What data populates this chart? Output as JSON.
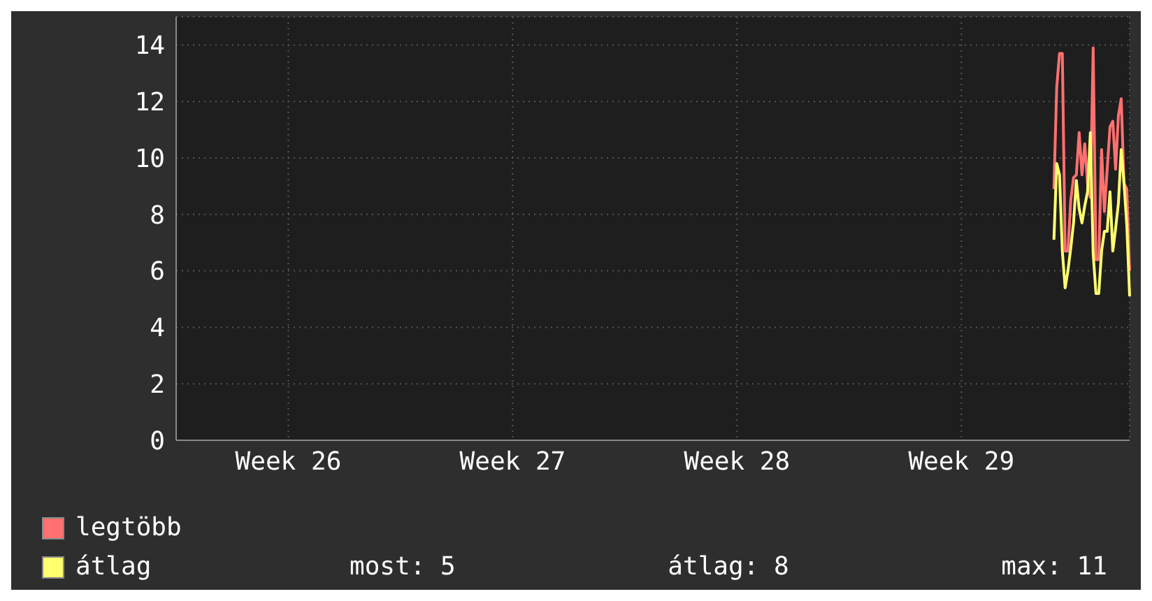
{
  "chart_data": {
    "type": "line",
    "categories": [
      null,
      null,
      null,
      null,
      null,
      null,
      null,
      null,
      null,
      null,
      null,
      null,
      null,
      null,
      null,
      null,
      null,
      null,
      null,
      null,
      null,
      null,
      null,
      null,
      null,
      null,
      null,
      null,
      null,
      null,
      null,
      null,
      null,
      null,
      null,
      null,
      null,
      null,
      null,
      null,
      "Week 26",
      null,
      null,
      null,
      null,
      null,
      null,
      null,
      null,
      null,
      null,
      null,
      null,
      null,
      null,
      null,
      null,
      null,
      null,
      null,
      null,
      null,
      null,
      null,
      null,
      null,
      null,
      null,
      null,
      null,
      null,
      null,
      null,
      null,
      null,
      null,
      null,
      null,
      null,
      null,
      null,
      null,
      null,
      null,
      null,
      null,
      null,
      null,
      null,
      null,
      null,
      null,
      null,
      null,
      null,
      null,
      null,
      null,
      null,
      null,
      null,
      null,
      null,
      null,
      null,
      null,
      null,
      null,
      null,
      null,
      null,
      null,
      null,
      null,
      null,
      null,
      null,
      null,
      null,
      null,
      "Week 27",
      null,
      null,
      null,
      null,
      null,
      null,
      null,
      null,
      null,
      null,
      null,
      null,
      null,
      null,
      null,
      null,
      null,
      null,
      null,
      null,
      null,
      null,
      null,
      null,
      null,
      null,
      null,
      null,
      null,
      null,
      null,
      null,
      null,
      null,
      null,
      null,
      null,
      null,
      null,
      null,
      null,
      null,
      null,
      null,
      null,
      null,
      null,
      null,
      null,
      null,
      null,
      null,
      null,
      null,
      null,
      null,
      null,
      null,
      null,
      null,
      null,
      null,
      null,
      null,
      null,
      null,
      null,
      null,
      null,
      null,
      null,
      null,
      null,
      null,
      null,
      null,
      null,
      null,
      null,
      "Week 28",
      null,
      null,
      null,
      null,
      null,
      null,
      null,
      null,
      null,
      null,
      null,
      null,
      null,
      null,
      null,
      null,
      null,
      null,
      null,
      null,
      null,
      null,
      null,
      null,
      null,
      null,
      null,
      null,
      null,
      null,
      null,
      null,
      null,
      null,
      null,
      null,
      null,
      null,
      null,
      null,
      null,
      null,
      null,
      null,
      null,
      null,
      null,
      null,
      null,
      null,
      null,
      null,
      null,
      null,
      null,
      null,
      null,
      null,
      null,
      null,
      null,
      null,
      null,
      null,
      null,
      null,
      null,
      null,
      null,
      null,
      null,
      null,
      null,
      null,
      null,
      null,
      null,
      null,
      null,
      "Week 29",
      null,
      null,
      null,
      null,
      null,
      null,
      null,
      null,
      null,
      null,
      null,
      null,
      null,
      null,
      null,
      null,
      null,
      null,
      null,
      null,
      null,
      null,
      null,
      null,
      null,
      null,
      null,
      null,
      null,
      null,
      null,
      null,
      null,
      null,
      null,
      null,
      null,
      null,
      null,
      null,
      null,
      null,
      null,
      null,
      null,
      null,
      null,
      null,
      null,
      null,
      null,
      null,
      null,
      null,
      null,
      null,
      null,
      null,
      null,
      null
    ],
    "ylim": [
      0,
      15
    ],
    "yticks": [
      0,
      2,
      4,
      6,
      8,
      10,
      12,
      14
    ],
    "grid": true,
    "legend": "bottom left",
    "marker": "none",
    "line_style": "solid",
    "series": [
      {
        "name": "legtöbb",
        "color": "#ff7070",
        "values": [
          null,
          null,
          null,
          null,
          null,
          null,
          null,
          null,
          null,
          null,
          null,
          null,
          null,
          null,
          null,
          null,
          null,
          null,
          null,
          null,
          null,
          null,
          null,
          null,
          null,
          null,
          null,
          null,
          null,
          null,
          null,
          null,
          null,
          null,
          null,
          null,
          null,
          null,
          null,
          null,
          null,
          null,
          null,
          null,
          null,
          null,
          null,
          null,
          null,
          null,
          null,
          null,
          null,
          null,
          null,
          null,
          null,
          null,
          null,
          null,
          null,
          null,
          null,
          null,
          null,
          null,
          null,
          null,
          null,
          null,
          null,
          null,
          null,
          null,
          null,
          null,
          null,
          null,
          null,
          null,
          null,
          null,
          null,
          null,
          null,
          null,
          null,
          null,
          null,
          null,
          null,
          null,
          null,
          null,
          null,
          null,
          null,
          null,
          null,
          null,
          null,
          null,
          null,
          null,
          null,
          null,
          null,
          null,
          null,
          null,
          null,
          null,
          null,
          null,
          null,
          null,
          null,
          null,
          null,
          null,
          null,
          null,
          null,
          null,
          null,
          null,
          null,
          null,
          null,
          null,
          null,
          null,
          null,
          null,
          null,
          null,
          null,
          null,
          null,
          null,
          null,
          null,
          null,
          null,
          null,
          null,
          null,
          null,
          null,
          null,
          null,
          null,
          null,
          null,
          null,
          null,
          null,
          null,
          null,
          null,
          null,
          null,
          null,
          null,
          null,
          null,
          null,
          null,
          null,
          null,
          null,
          null,
          null,
          null,
          null,
          null,
          null,
          null,
          null,
          null,
          null,
          null,
          null,
          null,
          null,
          null,
          null,
          null,
          null,
          null,
          null,
          null,
          null,
          null,
          null,
          null,
          null,
          null,
          null,
          null,
          null,
          null,
          null,
          null,
          null,
          null,
          null,
          null,
          null,
          null,
          null,
          null,
          null,
          null,
          null,
          null,
          null,
          null,
          null,
          null,
          null,
          null,
          null,
          null,
          null,
          null,
          null,
          null,
          null,
          null,
          null,
          null,
          null,
          null,
          null,
          null,
          null,
          null,
          null,
          null,
          null,
          null,
          null,
          null,
          null,
          null,
          null,
          null,
          null,
          null,
          null,
          null,
          null,
          null,
          null,
          null,
          null,
          null,
          null,
          null,
          null,
          null,
          null,
          null,
          null,
          null,
          null,
          null,
          null,
          null,
          null,
          null,
          null,
          null,
          null,
          null,
          null,
          null,
          null,
          null,
          null,
          null,
          null,
          null,
          null,
          null,
          null,
          null,
          null,
          null,
          null,
          null,
          null,
          null,
          null,
          null,
          null,
          null,
          null,
          null,
          null,
          null,
          null,
          null,
          null,
          null,
          null,
          null,
          null,
          null,
          null,
          null,
          null,
          8.9,
          12.5,
          13.7,
          13.7,
          6.7,
          6.7,
          8.5,
          9.3,
          9.4,
          10.9,
          9.4,
          10.5,
          9.1,
          8.6,
          13.9,
          6.4,
          6.4,
          10.3,
          8.1,
          9.6,
          11.1,
          11.3,
          9.6,
          11.5,
          12.1,
          9.1,
          8.9,
          6
        ]
      },
      {
        "name": "átlag",
        "color": "#ffff70",
        "values": [
          null,
          null,
          null,
          null,
          null,
          null,
          null,
          null,
          null,
          null,
          null,
          null,
          null,
          null,
          null,
          null,
          null,
          null,
          null,
          null,
          null,
          null,
          null,
          null,
          null,
          null,
          null,
          null,
          null,
          null,
          null,
          null,
          null,
          null,
          null,
          null,
          null,
          null,
          null,
          null,
          null,
          null,
          null,
          null,
          null,
          null,
          null,
          null,
          null,
          null,
          null,
          null,
          null,
          null,
          null,
          null,
          null,
          null,
          null,
          null,
          null,
          null,
          null,
          null,
          null,
          null,
          null,
          null,
          null,
          null,
          null,
          null,
          null,
          null,
          null,
          null,
          null,
          null,
          null,
          null,
          null,
          null,
          null,
          null,
          null,
          null,
          null,
          null,
          null,
          null,
          null,
          null,
          null,
          null,
          null,
          null,
          null,
          null,
          null,
          null,
          null,
          null,
          null,
          null,
          null,
          null,
          null,
          null,
          null,
          null,
          null,
          null,
          null,
          null,
          null,
          null,
          null,
          null,
          null,
          null,
          null,
          null,
          null,
          null,
          null,
          null,
          null,
          null,
          null,
          null,
          null,
          null,
          null,
          null,
          null,
          null,
          null,
          null,
          null,
          null,
          null,
          null,
          null,
          null,
          null,
          null,
          null,
          null,
          null,
          null,
          null,
          null,
          null,
          null,
          null,
          null,
          null,
          null,
          null,
          null,
          null,
          null,
          null,
          null,
          null,
          null,
          null,
          null,
          null,
          null,
          null,
          null,
          null,
          null,
          null,
          null,
          null,
          null,
          null,
          null,
          null,
          null,
          null,
          null,
          null,
          null,
          null,
          null,
          null,
          null,
          null,
          null,
          null,
          null,
          null,
          null,
          null,
          null,
          null,
          null,
          null,
          null,
          null,
          null,
          null,
          null,
          null,
          null,
          null,
          null,
          null,
          null,
          null,
          null,
          null,
          null,
          null,
          null,
          null,
          null,
          null,
          null,
          null,
          null,
          null,
          null,
          null,
          null,
          null,
          null,
          null,
          null,
          null,
          null,
          null,
          null,
          null,
          null,
          null,
          null,
          null,
          null,
          null,
          null,
          null,
          null,
          null,
          null,
          null,
          null,
          null,
          null,
          null,
          null,
          null,
          null,
          null,
          null,
          null,
          null,
          null,
          null,
          null,
          null,
          null,
          null,
          null,
          null,
          null,
          null,
          null,
          null,
          null,
          null,
          null,
          null,
          null,
          null,
          null,
          null,
          null,
          null,
          null,
          null,
          null,
          null,
          null,
          null,
          null,
          null,
          null,
          null,
          null,
          null,
          null,
          null,
          null,
          null,
          null,
          null,
          null,
          null,
          null,
          null,
          null,
          null,
          null,
          null,
          null,
          null,
          null,
          null,
          null,
          7.1,
          9.8,
          9.4,
          6.7,
          5.4,
          6,
          6.8,
          7.7,
          9.2,
          8.2,
          7.7,
          8.3,
          8.8,
          10.9,
          6.6,
          5.2,
          5.2,
          6.7,
          7.4,
          7.4,
          8.8,
          6.7,
          7.5,
          8.4,
          10.3,
          9.1,
          7.6,
          5.1
        ]
      }
    ],
    "annotations": [
      "most: 5",
      "átlag: 8",
      "max: 11"
    ]
  }
}
